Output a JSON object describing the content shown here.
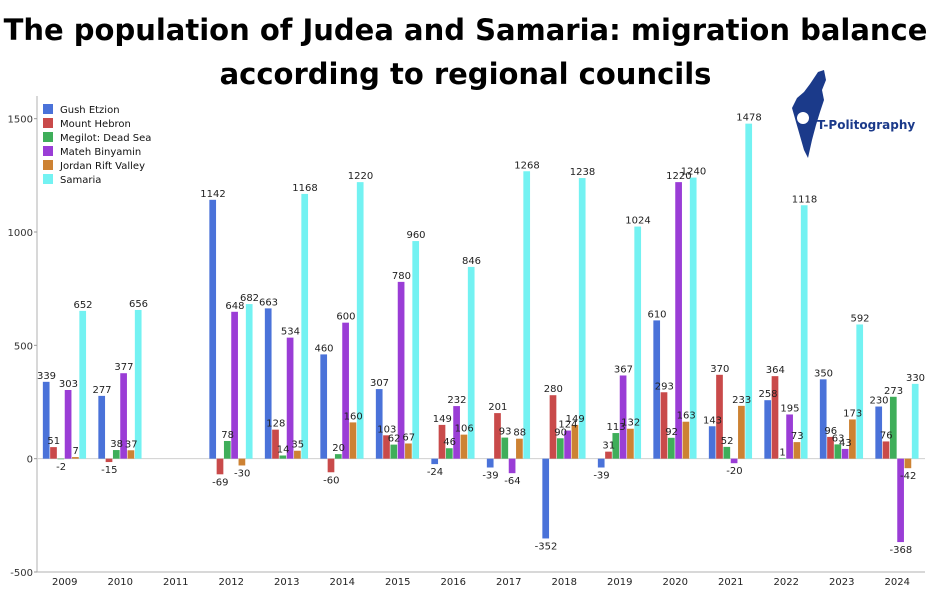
{
  "title_line1": "The population of Judea and Samaria: migration balance",
  "title_line2": "according to regional councils",
  "logo": {
    "text": "T-Politography",
    "icon": "israel-map-icon",
    "color": "#1b3a8a"
  },
  "chart_data": {
    "type": "bar",
    "categories": [
      "2009",
      "2010",
      "2011",
      "2012",
      "2013",
      "2014",
      "2015",
      "2016",
      "2017",
      "2018",
      "2019",
      "2020",
      "2021",
      "2022",
      "2023",
      "2024"
    ],
    "ylim": [
      -500,
      1600
    ],
    "yticks": [
      -500,
      0,
      500,
      1000,
      1500
    ],
    "grid": false,
    "legend_position": "top-left",
    "series": [
      {
        "name": "Gush Etzion",
        "color": "#4a72d9",
        "values": [
          339,
          277,
          null,
          1142,
          663,
          460,
          307,
          -24,
          -39,
          -352,
          -39,
          610,
          143,
          258,
          350,
          230
        ]
      },
      {
        "name": "Mount Hebron",
        "color": "#c94a4a",
        "values": [
          51,
          -15,
          null,
          -69,
          128,
          -60,
          103,
          149,
          201,
          280,
          31,
          293,
          370,
          364,
          96,
          76
        ]
      },
      {
        "name": "Megilot: Dead Sea",
        "color": "#3fae5a",
        "values": [
          -2,
          38,
          null,
          78,
          14,
          20,
          62,
          46,
          93,
          90,
          113,
          92,
          52,
          1,
          63,
          273
        ]
      },
      {
        "name": "Mateh Binyamin",
        "color": "#9a3dd6",
        "values": [
          303,
          377,
          null,
          648,
          534,
          600,
          780,
          232,
          -64,
          124,
          367,
          1220,
          -20,
          195,
          43,
          -368
        ]
      },
      {
        "name": "Jordan Rift Valley",
        "color": "#cd8233",
        "values": [
          7,
          37,
          null,
          -30,
          35,
          160,
          67,
          106,
          88,
          149,
          132,
          163,
          233,
          73,
          173,
          -42
        ]
      },
      {
        "name": "Samaria",
        "color": "#73f2f2",
        "values": [
          652,
          656,
          null,
          682,
          1168,
          1220,
          960,
          846,
          1268,
          1238,
          1024,
          1240,
          1478,
          1118,
          592,
          330
        ]
      }
    ]
  }
}
